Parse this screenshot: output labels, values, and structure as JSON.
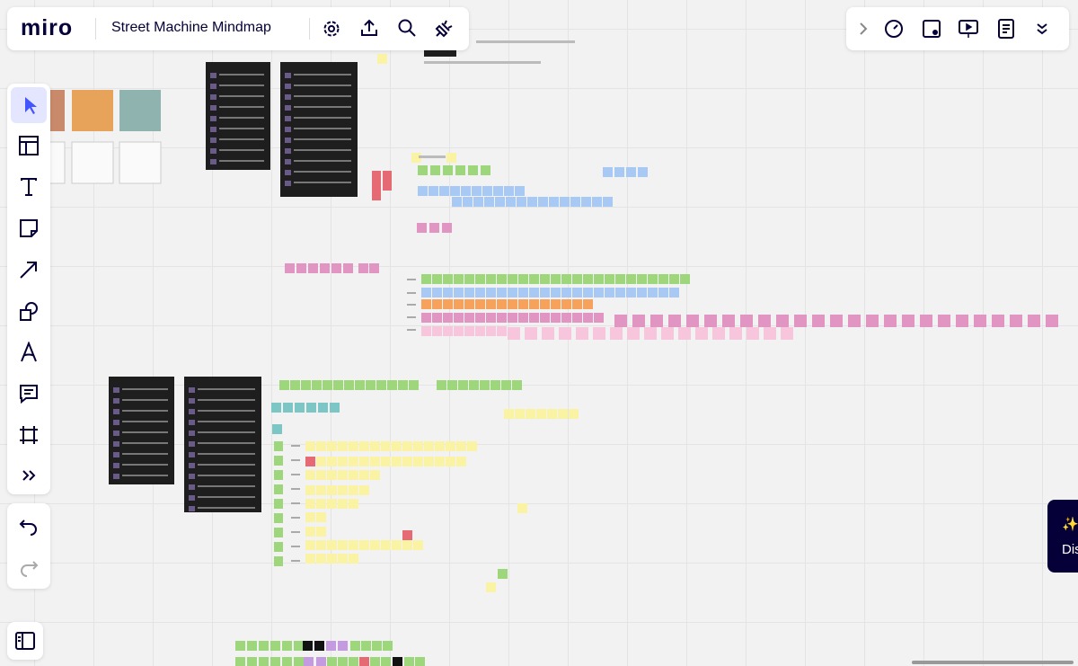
{
  "app": {
    "logo": "miro",
    "board_title": "Street Machine Mindmap"
  },
  "popup": {
    "icon": "✨",
    "text": "Dis"
  }
}
